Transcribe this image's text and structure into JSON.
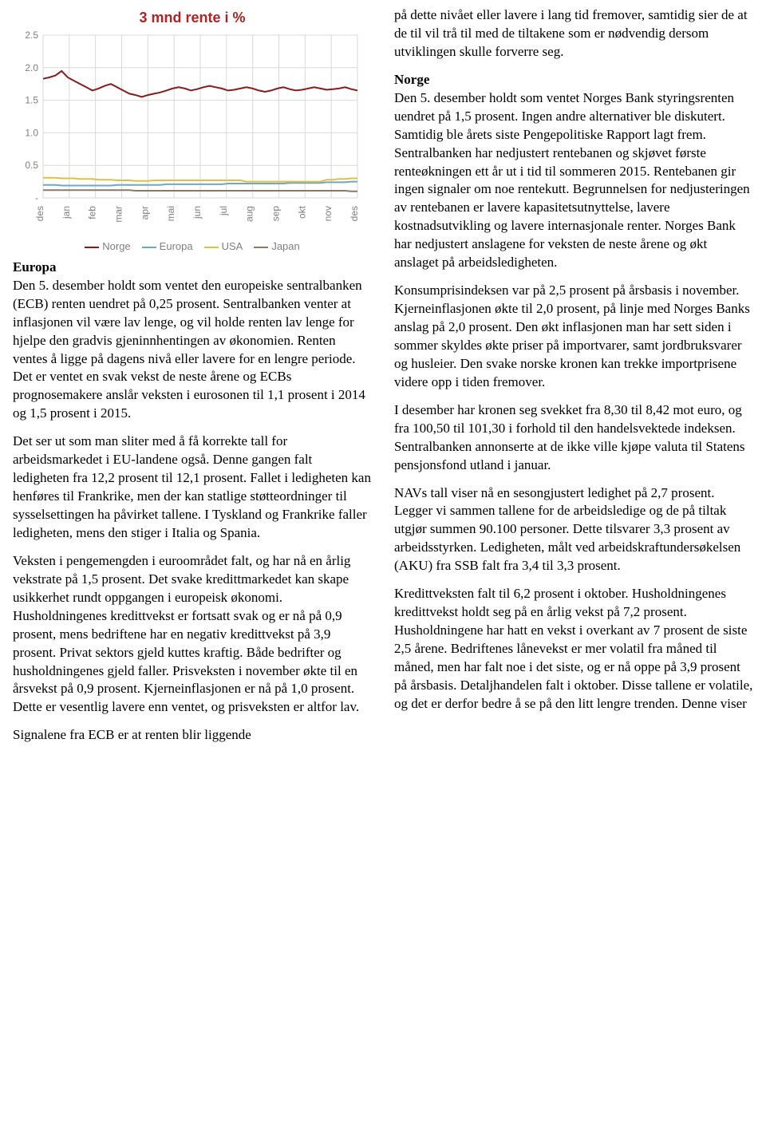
{
  "chart": {
    "title": "3 mnd rente i %",
    "title_color": "#b22222",
    "title_fontsize": 18,
    "background_color": "#ffffff",
    "plot_border_color": "#d9d9d9",
    "grid_color": "#d9d9d9",
    "axis_text_color": "#7f7f7f",
    "tick_fontsize": 12,
    "ylim": [
      0,
      2.5
    ],
    "y_ticks": [
      0,
      0.5,
      1.0,
      1.5,
      2.0,
      2.5
    ],
    "y_tick_labels": [
      "-",
      "0.5",
      "1.0",
      "1.5",
      "2.0",
      "2.5"
    ],
    "x_labels": [
      "des",
      "jan",
      "feb",
      "mar",
      "apr",
      "mai",
      "jun",
      "jul",
      "aug",
      "sep",
      "okt",
      "nov",
      "des"
    ],
    "x_label_rotation": -90,
    "line_width": 2,
    "series": [
      {
        "name": "Norge",
        "color": "#8b1a1a",
        "values": [
          1.83,
          1.85,
          1.88,
          1.95,
          1.85,
          1.8,
          1.75,
          1.7,
          1.65,
          1.68,
          1.72,
          1.75,
          1.7,
          1.65,
          1.6,
          1.58,
          1.55,
          1.58,
          1.6,
          1.62,
          1.65,
          1.68,
          1.7,
          1.68,
          1.65,
          1.67,
          1.7,
          1.72,
          1.7,
          1.68,
          1.65,
          1.66,
          1.68,
          1.7,
          1.68,
          1.65,
          1.63,
          1.65,
          1.68,
          1.7,
          1.67,
          1.65,
          1.66,
          1.68,
          1.7,
          1.68,
          1.66,
          1.67,
          1.68,
          1.7,
          1.67,
          1.65
        ]
      },
      {
        "name": "Europa",
        "color": "#6fa8c7",
        "values": [
          0.2,
          0.2,
          0.2,
          0.19,
          0.19,
          0.19,
          0.19,
          0.19,
          0.19,
          0.19,
          0.19,
          0.19,
          0.2,
          0.2,
          0.2,
          0.2,
          0.2,
          0.2,
          0.2,
          0.2,
          0.21,
          0.21,
          0.21,
          0.21,
          0.21,
          0.21,
          0.21,
          0.21,
          0.21,
          0.21,
          0.22,
          0.22,
          0.22,
          0.22,
          0.22,
          0.22,
          0.22,
          0.22,
          0.22,
          0.22,
          0.23,
          0.23,
          0.23,
          0.23,
          0.23,
          0.23,
          0.24,
          0.24,
          0.24,
          0.24,
          0.25,
          0.25
        ]
      },
      {
        "name": "USA",
        "color": "#e0c040",
        "values": [
          0.31,
          0.31,
          0.31,
          0.3,
          0.3,
          0.3,
          0.29,
          0.29,
          0.29,
          0.28,
          0.28,
          0.28,
          0.27,
          0.27,
          0.27,
          0.26,
          0.26,
          0.26,
          0.27,
          0.27,
          0.27,
          0.27,
          0.27,
          0.27,
          0.27,
          0.27,
          0.27,
          0.27,
          0.27,
          0.27,
          0.27,
          0.27,
          0.27,
          0.25,
          0.25,
          0.25,
          0.25,
          0.25,
          0.25,
          0.25,
          0.25,
          0.25,
          0.25,
          0.25,
          0.25,
          0.25,
          0.28,
          0.28,
          0.29,
          0.29,
          0.3,
          0.3
        ]
      },
      {
        "name": "Japan",
        "color": "#8a7a6a",
        "values": [
          0.12,
          0.12,
          0.12,
          0.12,
          0.12,
          0.12,
          0.12,
          0.12,
          0.12,
          0.12,
          0.12,
          0.12,
          0.12,
          0.12,
          0.12,
          0.11,
          0.11,
          0.11,
          0.11,
          0.11,
          0.11,
          0.11,
          0.11,
          0.11,
          0.11,
          0.11,
          0.11,
          0.11,
          0.11,
          0.11,
          0.11,
          0.11,
          0.11,
          0.11,
          0.11,
          0.11,
          0.11,
          0.11,
          0.11,
          0.11,
          0.11,
          0.11,
          0.11,
          0.11,
          0.11,
          0.11,
          0.11,
          0.11,
          0.11,
          0.11,
          0.1,
          0.1
        ]
      }
    ],
    "legend_items": [
      {
        "label": "Norge",
        "color": "#8b1a1a"
      },
      {
        "label": "Europa",
        "color": "#6fa8c7"
      },
      {
        "label": "USA",
        "color": "#e0c040"
      },
      {
        "label": "Japan",
        "color": "#8a7a6a"
      }
    ]
  },
  "left": {
    "europa_head": "Europa",
    "p1": "Den 5. desember holdt som ventet den europeiske sentralbanken (ECB) renten uendret på 0,25 prosent. Sentralbanken venter at inflasjonen vil være lav lenge, og vil holde renten lav lenge for hjelpe den gradvis gjeninnhentingen av økonomien. Renten ventes å ligge på dagens nivå eller lavere for en lengre periode. Det er ventet en svak vekst de neste årene og ECBs prognosemakere anslår veksten i eurosonen til 1,1 prosent i 2014 og 1,5 prosent i 2015.",
    "p2": "Det ser ut som man sliter med å få korrekte tall for arbeidsmarkedet i EU-landene også. Denne gangen falt ledigheten fra 12,2 prosent til 12,1 prosent. Fallet i ledigheten kan henføres til Frankrike, men der kan statlige støtteordninger til sysselsettingen ha påvirket tallene. I Tyskland og Frankrike faller ledigheten, mens den stiger i Italia og Spania.",
    "p3": "Veksten i pengemengden i euroområdet falt, og har nå en årlig vekstrate på 1,5 prosent. Det svake kredittmarkedet kan skape usikkerhet rundt oppgangen i europeisk økonomi. Husholdningenes kredittvekst er fortsatt svak og er nå på 0,9 prosent, mens bedriftene har en negativ kredittvekst på 3,9 prosent. Privat sektors gjeld kuttes kraftig. Både bedrifter og husholdningenes gjeld faller. Prisveksten i november økte til en årsvekst på 0,9 prosent. Kjerneinflasjonen er nå på 1,0 prosent. Dette er vesentlig lavere enn ventet, og prisveksten er altfor lav.",
    "p4": "Signalene fra ECB er at renten blir liggende"
  },
  "right": {
    "p0": "på dette nivået eller lavere i lang tid fremover, samtidig sier de at de til vil trå til med de tiltakene som er nødvendig dersom utviklingen skulle forverre seg.",
    "norge_head": "Norge",
    "p1": "Den 5. desember holdt som ventet Norges Bank styringsrenten uendret på 1,5 prosent. Ingen andre alternativer ble diskutert. Samtidig ble årets siste Pengepolitiske Rapport lagt frem. Sentralbanken har nedjustert rentebanen og skjøvet første renteøkningen ett år ut i tid til sommeren 2015. Rentebanen gir ingen signaler om noe rentekutt. Begrunnelsen for nedjusteringen av rentebanen er lavere kapasitetsutnyttelse, lavere kostnadsutvikling og lavere internasjonale renter. Norges Bank har nedjustert anslagene for veksten de neste årene og økt anslaget på arbeidsledigheten.",
    "p2": "Konsumprisindeksen var på 2,5 prosent på årsbasis i november. Kjerneinflasjonen økte til 2,0 prosent, på linje med Norges Banks anslag på 2,0 prosent. Den økt inflasjonen man har sett siden i sommer skyldes økte priser på importvarer, samt jordbruksvarer og husleier. Den svake norske kronen kan trekke importprisene videre opp i tiden fremover.",
    "p3": "I desember har kronen seg svekket fra 8,30 til 8,42 mot euro, og fra 100,50 til 101,30 i forhold til den handelsvektede indeksen. Sentralbanken annonserte at de ikke ville kjøpe valuta til Statens pensjonsfond utland i januar.",
    "p4": "NAVs tall viser nå en sesongjustert ledighet på 2,7 prosent. Legger vi sammen tallene for de arbeidsledige og de på tiltak utgjør summen 90.100 personer. Dette tilsvarer 3,3 prosent av arbeidsstyrken. Ledigheten, målt ved arbeidskraftundersøkelsen (AKU) fra SSB falt fra 3,4 til 3,3 prosent.",
    "p5": "Kredittveksten falt til 6,2 prosent i oktober. Husholdningenes kredittvekst holdt seg på en årlig vekst på 7,2 prosent. Husholdningene har hatt en vekst i overkant av 7 prosent de siste 2,5 årene. Bedriftenes lånevekst er mer volatil fra måned til måned, men har falt noe i det siste, og er nå oppe på 3,9 prosent på årsbasis. Detaljhandelen falt i oktober. Disse tallene er volatile, og det er derfor bedre å se på den litt lengre trenden. Denne viser"
  }
}
